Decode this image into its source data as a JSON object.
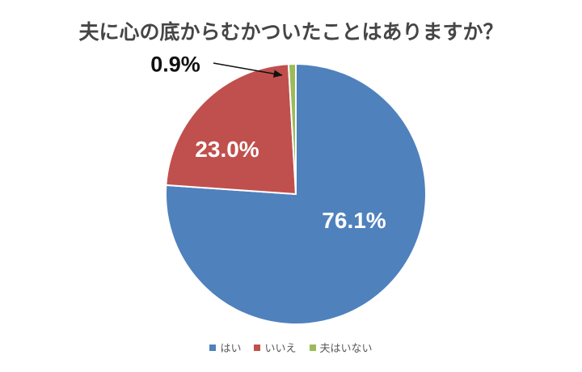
{
  "title": "夫に心の底からむかついたことはありますか？",
  "chart_data": {
    "type": "pie",
    "title": "夫に心の底からむかついたことはありますか？",
    "categories": [
      "はい",
      "いいえ",
      "夫はいない"
    ],
    "values": [
      76.1,
      23.0,
      0.9
    ],
    "labels": [
      "76.1%",
      "23.0%",
      "0.9%"
    ],
    "colors": [
      "#4F81BD",
      "#C0504D",
      "#9BBB59"
    ],
    "start_angle_deg": 0,
    "direction": "clockwise",
    "slice_border_color": "#ffffff",
    "legend_position": "bottom",
    "annotation": "0.9% のスライスへの引き出し線"
  },
  "legend": {
    "items": [
      {
        "label": "はい",
        "color": "#4F81BD"
      },
      {
        "label": "いいえ",
        "color": "#C0504D"
      },
      {
        "label": "夫はいない",
        "color": "#9BBB59"
      }
    ]
  }
}
